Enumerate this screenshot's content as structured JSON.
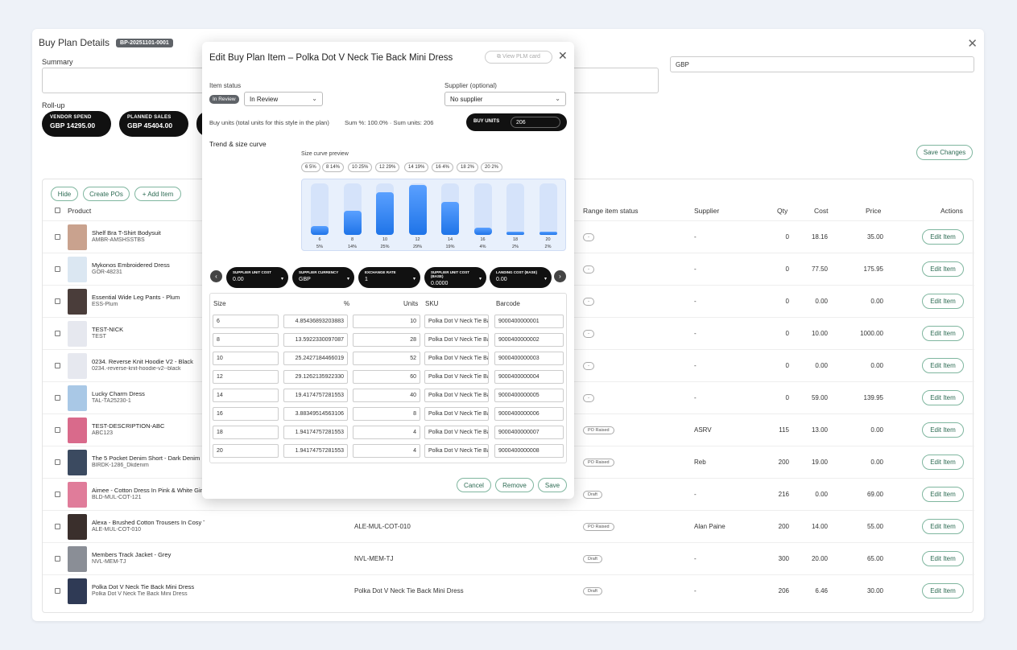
{
  "window": {
    "title": "Buy Plan Details",
    "plan_id": "BP-20251101-0001"
  },
  "summary_label": "Summary",
  "currency_value": "GBP",
  "rollup_label": "Roll-up",
  "stats": [
    {
      "label": "VENDOR SPEND",
      "value": "GBP 14295.00"
    },
    {
      "label": "PLANNED SALES",
      "value": "GBP 45404.00"
    }
  ],
  "save_changes": "Save Changes",
  "toolbar": {
    "hide": "Hide",
    "create_pos": "Create POs",
    "add_item": "+ Add Item"
  },
  "table_headers": {
    "product": "Product",
    "range_status": "Range item status",
    "supplier": "Supplier",
    "qty": "Qty",
    "cost": "Cost",
    "price": "Price",
    "actions": "Actions"
  },
  "edit_label": "Edit Item",
  "rows": [
    {
      "name": "Shelf Bra T-Shirt Bodysuit",
      "sku": "AMBR-AMSHSSTBS",
      "code": "",
      "status": "-",
      "supplier": "-",
      "qty": "0",
      "cost": "18.16",
      "price": "35.00"
    },
    {
      "name": "Mykonos Embroidered Dress",
      "sku": "GOR-48231",
      "code": "",
      "status": "-",
      "supplier": "-",
      "qty": "0",
      "cost": "77.50",
      "price": "175.95"
    },
    {
      "name": "Essential Wide Leg Pants - Plum",
      "sku": "ESS-Plum",
      "code": "",
      "status": "-",
      "supplier": "-",
      "qty": "0",
      "cost": "0.00",
      "price": "0.00"
    },
    {
      "name": "TEST-NICK",
      "sku": "TEST",
      "code": "",
      "status": "-",
      "supplier": "-",
      "qty": "0",
      "cost": "10.00",
      "price": "1000.00"
    },
    {
      "name": "0234. Reverse Knit Hoodie V2 - Black",
      "sku": "0234.-reverse-knit-hoodie-v2--black",
      "code": "",
      "status": "-",
      "supplier": "-",
      "qty": "0",
      "cost": "0.00",
      "price": "0.00"
    },
    {
      "name": "Lucky Charm Dress",
      "sku": "TAL-TA25230-1",
      "code": "",
      "status": "-",
      "supplier": "-",
      "qty": "0",
      "cost": "59.00",
      "price": "139.95"
    },
    {
      "name": "TEST-DESCRIPTION-ABC",
      "sku": "ABC123",
      "code": "",
      "status": "PO Raised",
      "supplier": "ASRV",
      "qty": "115",
      "cost": "13.00",
      "price": "0.00"
    },
    {
      "name": "The 5 Pocket Denim Short - Dark Denim",
      "sku": "BIRDK-1286_Dkdenim",
      "code": "",
      "status": "PO Raised",
      "supplier": "Reb",
      "qty": "200",
      "cost": "19.00",
      "price": "0.00"
    },
    {
      "name": "Aimee - Cotton Dress In Pink & White Gingham",
      "sku": "BLD-MUL-COT-121",
      "code": "",
      "status": "Draft",
      "supplier": "-",
      "qty": "216",
      "cost": "0.00",
      "price": "69.00"
    },
    {
      "name": "Alexa - Brushed Cotton Trousers In Cosy Tartan",
      "sku": "ALE-MUL-COT-010",
      "code": "ALE-MUL-COT-010",
      "status": "PO Raised",
      "supplier": "Alan Paine",
      "qty": "200",
      "cost": "14.00",
      "price": "55.00"
    },
    {
      "name": "Members Track Jacket - Grey",
      "sku": "NVL-MEM-TJ",
      "code": "NVL-MEM-TJ",
      "status": "Draft",
      "supplier": "-",
      "qty": "300",
      "cost": "20.00",
      "price": "65.00"
    },
    {
      "name": "Polka Dot V Neck Tie Back Mini Dress",
      "sku": "Polka Dot V Neck Tie Back Mini Dress",
      "code": "Polka Dot V Neck Tie Back Mini Dress",
      "status": "Draft",
      "supplier": "-",
      "qty": "206",
      "cost": "6.46",
      "price": "30.00"
    }
  ],
  "modal": {
    "title": "Edit Buy Plan Item – Polka Dot V Neck Tie Back Mini Dress",
    "view_plm": "View PLM card",
    "item_status_label": "Item status",
    "status_badge": "In Review",
    "status_value": "In Review",
    "supplier_label": "Supplier (optional)",
    "supplier_value": "No supplier",
    "buy_units_desc": "Buy units (total units for this style in the plan)",
    "sum_info": "Sum %: 100.0% · Sum units: 206",
    "buy_units_label": "BUY UNITS",
    "buy_units_value": "206",
    "trend_label": "Trend & size curve",
    "preview_label": "Size curve preview",
    "params": [
      {
        "label": "SUPPLIER UNIT COST",
        "value": "0.00"
      },
      {
        "label": "SUPPLIER CURRENCY",
        "value": "GBP"
      },
      {
        "label": "EXCHANGE RATE",
        "value": "1"
      },
      {
        "label": "SUPPLIER UNIT COST (BASE)",
        "value": "0.0000"
      },
      {
        "label": "LANDING COST (BASE)",
        "value": "0.00"
      }
    ],
    "size_headers": {
      "size": "Size",
      "pct": "%",
      "units": "Units",
      "sku": "SKU",
      "barcode": "Barcode"
    },
    "size_rows": [
      {
        "size": "6",
        "pct": "4.85436893203883",
        "units": "10",
        "sku": "Polka Dot V Neck Tie Back Mini Dress",
        "barcode": "9000400000001"
      },
      {
        "size": "8",
        "pct": "13.5922330097087",
        "units": "28",
        "sku": "Polka Dot V Neck Tie Back Mini Dress",
        "barcode": "9000400000002"
      },
      {
        "size": "10",
        "pct": "25.2427184466019",
        "units": "52",
        "sku": "Polka Dot V Neck Tie Back Mini Dress",
        "barcode": "9000400000003"
      },
      {
        "size": "12",
        "pct": "29.1262135922330",
        "units": "60",
        "sku": "Polka Dot V Neck Tie Back Mini Dress",
        "barcode": "9000400000004"
      },
      {
        "size": "14",
        "pct": "19.4174757281553",
        "units": "40",
        "sku": "Polka Dot V Neck Tie Back Mini Dress",
        "barcode": "9000400000005"
      },
      {
        "size": "16",
        "pct": "3.88349514563106",
        "units": "8",
        "sku": "Polka Dot V Neck Tie Back Mini Dress",
        "barcode": "9000400000006"
      },
      {
        "size": "18",
        "pct": "1.94174757281553",
        "units": "4",
        "sku": "Polka Dot V Neck Tie Back Mini Dress",
        "barcode": "9000400000007"
      },
      {
        "size": "20",
        "pct": "1.94174757281553",
        "units": "4",
        "sku": "Polka Dot V Neck Tie Back Mini Dress",
        "barcode": "9000400000008"
      }
    ],
    "curve": [
      {
        "size": "6",
        "pct": 5,
        "chip": "6 5%",
        "label": "5%"
      },
      {
        "size": "8",
        "pct": 14,
        "chip": "8 14%",
        "label": "14%"
      },
      {
        "size": "10",
        "pct": 25,
        "chip": "10 25%",
        "label": "25%"
      },
      {
        "size": "12",
        "pct": 29,
        "chip": "12 29%",
        "label": "29%"
      },
      {
        "size": "14",
        "pct": 19,
        "chip": "14 19%",
        "label": "19%"
      },
      {
        "size": "16",
        "pct": 4,
        "chip": "16 4%",
        "label": "4%"
      },
      {
        "size": "18",
        "pct": 2,
        "chip": "18 2%",
        "label": "2%"
      },
      {
        "size": "20",
        "pct": 2,
        "chip": "20 2%",
        "label": "2%"
      }
    ],
    "cancel": "Cancel",
    "remove": "Remove",
    "save": "Save"
  },
  "colors": {
    "accent": "#2d6b53",
    "bar": "#1f74e8"
  }
}
